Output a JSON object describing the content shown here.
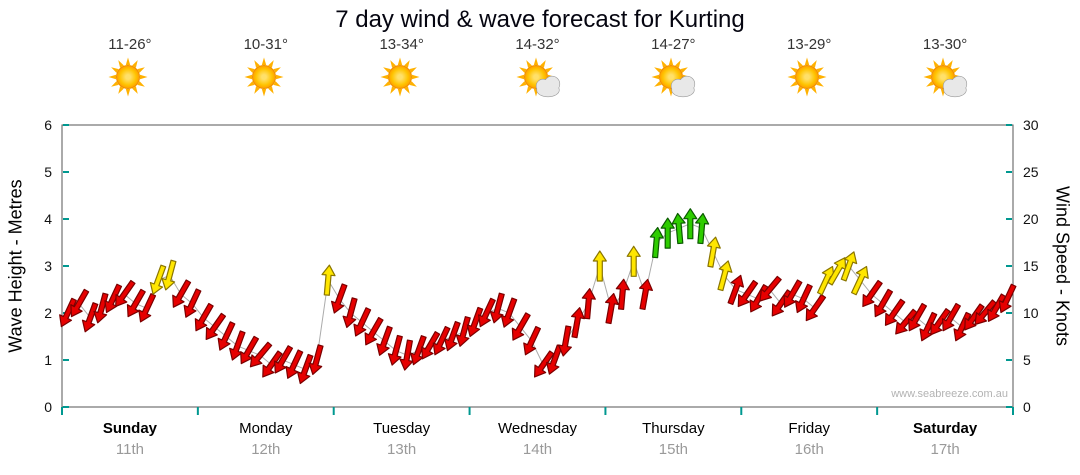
{
  "page": {
    "title": "7 day wind & wave forecast for Kurting"
  },
  "header": {
    "days": [
      {
        "name": "Sunday",
        "date": "11th",
        "temp": "11-26°",
        "icon": "sunny",
        "bold": true
      },
      {
        "name": "Monday",
        "date": "12th",
        "temp": "10-31°",
        "icon": "sunny",
        "bold": false
      },
      {
        "name": "Tuesday",
        "date": "13th",
        "temp": "13-34°",
        "icon": "sunny",
        "bold": false
      },
      {
        "name": "Wednesday",
        "date": "14th",
        "temp": "14-32°",
        "icon": "partly-cloudy",
        "bold": false
      },
      {
        "name": "Thursday",
        "date": "15th",
        "temp": "14-27°",
        "icon": "partly-cloudy",
        "bold": false
      },
      {
        "name": "Friday",
        "date": "16th",
        "temp": "13-29°",
        "icon": "sunny",
        "bold": false
      },
      {
        "name": "Saturday",
        "date": "17th",
        "temp": "13-30°",
        "icon": "partly-cloudy",
        "bold": true
      }
    ]
  },
  "chart_data": {
    "type": "scatter",
    "marker": "wind-arrow",
    "title": "7 day wind & wave forecast for Kurting",
    "categories": [
      "Sunday",
      "Monday",
      "Tuesday",
      "Wednesday",
      "Thursday",
      "Friday",
      "Saturday"
    ],
    "dates": [
      "11th",
      "12th",
      "13th",
      "14th",
      "15th",
      "16th",
      "17th"
    ],
    "y_left": {
      "label": "Wave Height - Metres",
      "min": 0,
      "max": 6,
      "step": 1
    },
    "y_right": {
      "label": "Wind Speed - Knots",
      "min": 0,
      "max": 30,
      "step": 5
    },
    "samples_per_day": 12,
    "wind_speed_knots": [
      10,
      11,
      9.5,
      10.5,
      11.5,
      12,
      11,
      10.5,
      13.5,
      14,
      12,
      11,
      9.5,
      8.5,
      7.5,
      6.5,
      6,
      5.5,
      4.5,
      5,
      4.5,
      4,
      5,
      13.5,
      11.5,
      10,
      9,
      8,
      7,
      6,
      5.5,
      6,
      6.5,
      7,
      7.5,
      8,
      9,
      10,
      10.5,
      10,
      8.5,
      7,
      4.5,
      5,
      7,
      9,
      11,
      15,
      10.5,
      12,
      15.5,
      12,
      17.5,
      18.5,
      19,
      19.5,
      19,
      16.5,
      14,
      12.5,
      12,
      11.5,
      12.5,
      11,
      12,
      11.5,
      10.5,
      13.5,
      14.5,
      15,
      13.5,
      12,
      11,
      10,
      9,
      9.5,
      8.5,
      9,
      9.5,
      8.5,
      9.5,
      10,
      10.5,
      11.5
    ],
    "wind_direction_deg": [
      205,
      210,
      200,
      195,
      205,
      215,
      210,
      205,
      200,
      195,
      210,
      205,
      210,
      215,
      205,
      200,
      210,
      220,
      215,
      210,
      205,
      200,
      195,
      5,
      200,
      195,
      205,
      210,
      200,
      195,
      190,
      200,
      210,
      205,
      200,
      195,
      200,
      205,
      195,
      200,
      210,
      205,
      215,
      200,
      190,
      10,
      5,
      0,
      10,
      5,
      0,
      10,
      5,
      0,
      355,
      0,
      5,
      10,
      15,
      20,
      215,
      210,
      220,
      215,
      210,
      205,
      215,
      25,
      30,
      20,
      25,
      215,
      210,
      215,
      220,
      210,
      205,
      215,
      210,
      205,
      215,
      220,
      210,
      205
    ],
    "speed_colors": {
      "yellow_at": 13,
      "green_at": 17,
      "colors": {
        "red": "#E60000",
        "yellow": "#FFE600",
        "green": "#2ECC00"
      },
      "outlines": {
        "red": "#7A0000",
        "yellow": "#8A7500",
        "green": "#0A5A00"
      }
    },
    "axis_tick_color": "#009890",
    "watermark": "www.seabreeze.com.au"
  }
}
